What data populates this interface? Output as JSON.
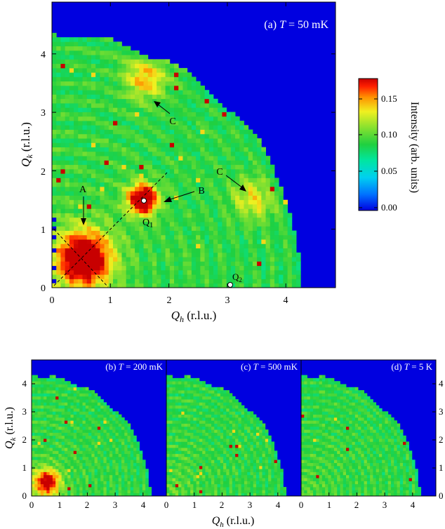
{
  "colorbar": {
    "label": "Intensity (arb. units)",
    "ticks": [
      "0.00",
      "0.05",
      "0.10",
      "0.15"
    ],
    "range": [
      0,
      0.18
    ],
    "colors": [
      "#0000e0",
      "#00a0ff",
      "#00e6b4",
      "#20d040",
      "#80e030",
      "#f0f020",
      "#ff9000",
      "#ff0000",
      "#d00000"
    ]
  },
  "panel_a": {
    "label_prefix": "(a) ",
    "label_T": "T",
    "label_suffix": " = 50 mK",
    "xlabel_sym": "Q",
    "xlabel_sub": "h",
    "xlabel_unit": " (r.l.u.)",
    "ylabel_sym": "Q",
    "ylabel_sub": "k",
    "ylabel_unit": " (r.l.u.)",
    "xticks": [
      "0",
      "1",
      "2",
      "3",
      "4"
    ],
    "yticks": [
      "0",
      "1",
      "2",
      "3",
      "4"
    ],
    "annotations": {
      "A": "A",
      "B": "B",
      "C1": "C",
      "C2": "C",
      "Q1": "Q",
      "Q1_sub": "1",
      "Q2": "Q",
      "Q2_sub": "2"
    }
  },
  "panels_small": [
    {
      "prefix": "(b) ",
      "T": "T",
      "suffix": " = 200 mK"
    },
    {
      "prefix": "(c) ",
      "T": "T",
      "suffix": " = 500 mK"
    },
    {
      "prefix": "(d) ",
      "T": "T",
      "suffix": " = 5 K"
    }
  ],
  "small_axes": {
    "xticks": [
      "0",
      "1",
      "2",
      "3",
      "4"
    ],
    "yticks": [
      "0",
      "1",
      "2",
      "3",
      "4"
    ],
    "xlabel_sym": "Q",
    "xlabel_sub": "h",
    "xlabel_unit": " (r.l.u.)",
    "ylabel_sym": "Q",
    "ylabel_sub": "k",
    "ylabel_unit": " (r.l.u.)"
  },
  "chart_data": [
    {
      "type": "heatmap",
      "title": "(a) T = 50 mK",
      "xlabel": "Qh (r.l.u.)",
      "ylabel": "Qk (r.l.u.)",
      "xlim": [
        0,
        4.85
      ],
      "ylim": [
        0,
        4.85
      ],
      "detector_radius": 4.3,
      "background_intensity": 0.09,
      "colorbar": {
        "label": "Intensity (arb. units)",
        "range": [
          0,
          0.18
        ],
        "ticks": [
          0.0,
          0.05,
          0.1,
          0.15
        ]
      },
      "features": [
        {
          "label": "A",
          "qh": 0.55,
          "qk": 0.5,
          "intensity": 0.18
        },
        {
          "label": "Q1",
          "qh": 1.55,
          "qk": 1.5,
          "intensity": 0.18
        },
        {
          "label": "Q2",
          "qh": 3.05,
          "qk": 0.05
        },
        {
          "label": "C",
          "qh": 1.6,
          "qk": 3.55,
          "intensity": 0.13
        },
        {
          "label": "C",
          "qh": 3.45,
          "qk": 1.5,
          "intensity": 0.12
        }
      ],
      "cut_lines": [
        {
          "name": "diagonal",
          "from": [
            0,
            0
          ],
          "to": [
            2.0,
            1.95
          ]
        },
        {
          "name": "anti-diagonal",
          "from": [
            0,
            1.0
          ],
          "to": [
            1.0,
            0
          ]
        }
      ]
    },
    {
      "type": "heatmap",
      "title": "(b) T = 200 mK",
      "xlim": [
        0,
        4.85
      ],
      "ylim": [
        0,
        4.85
      ],
      "features": [
        {
          "label": "A",
          "qh": 0.55,
          "qk": 0.5,
          "intensity": 0.16
        }
      ]
    },
    {
      "type": "heatmap",
      "title": "(c) T = 500 mK",
      "xlim": [
        0,
        4.85
      ],
      "ylim": [
        0,
        4.85
      ],
      "features": []
    },
    {
      "type": "heatmap",
      "title": "(d) T = 5 K",
      "xlim": [
        0,
        4.85
      ],
      "ylim": [
        0,
        4.85
      ],
      "features": []
    }
  ]
}
